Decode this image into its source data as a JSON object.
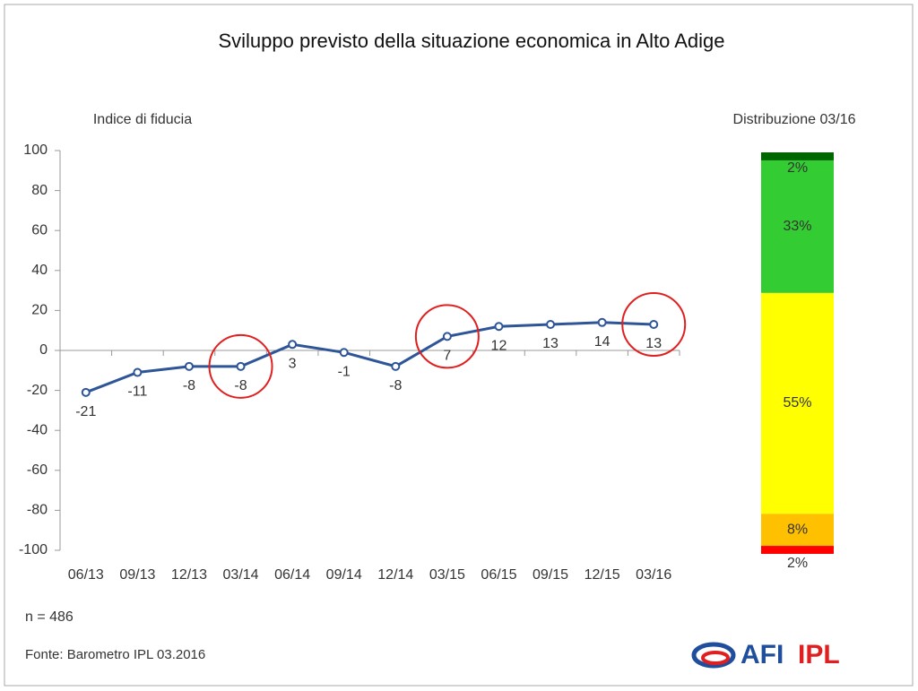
{
  "chart_data": [
    {
      "type": "line",
      "title": "Sviluppo previsto della situazione economica in Alto Adige",
      "y_label": "Indice di fiducia",
      "categories": [
        "06/13",
        "09/13",
        "12/13",
        "03/14",
        "06/14",
        "09/14",
        "12/14",
        "03/15",
        "06/15",
        "09/15",
        "12/15",
        "03/16"
      ],
      "values": [
        -21,
        -11,
        -8,
        -8,
        3,
        -1,
        -8,
        7,
        12,
        13,
        14,
        13
      ],
      "color": "#2e5597",
      "ylim": [
        -100,
        100
      ],
      "yticks": [
        -100,
        -80,
        -60,
        -40,
        -20,
        0,
        20,
        40,
        60,
        80,
        100
      ],
      "note": "n = 486",
      "source": "Fonte: Barometro IPL 03.2016"
    },
    {
      "type": "stacked_bar",
      "title": "Distribuzione 03/16",
      "values": [
        2,
        8,
        55,
        33,
        2
      ],
      "value_labels": [
        "2%",
        "8%",
        "55%",
        "33%",
        "2%"
      ],
      "colors": [
        "#ff0000",
        "#ffc000",
        "#ffff00",
        "#33cc33",
        "#006600"
      ]
    }
  ],
  "logo": {
    "left": "AFI",
    "right": "IPL"
  }
}
